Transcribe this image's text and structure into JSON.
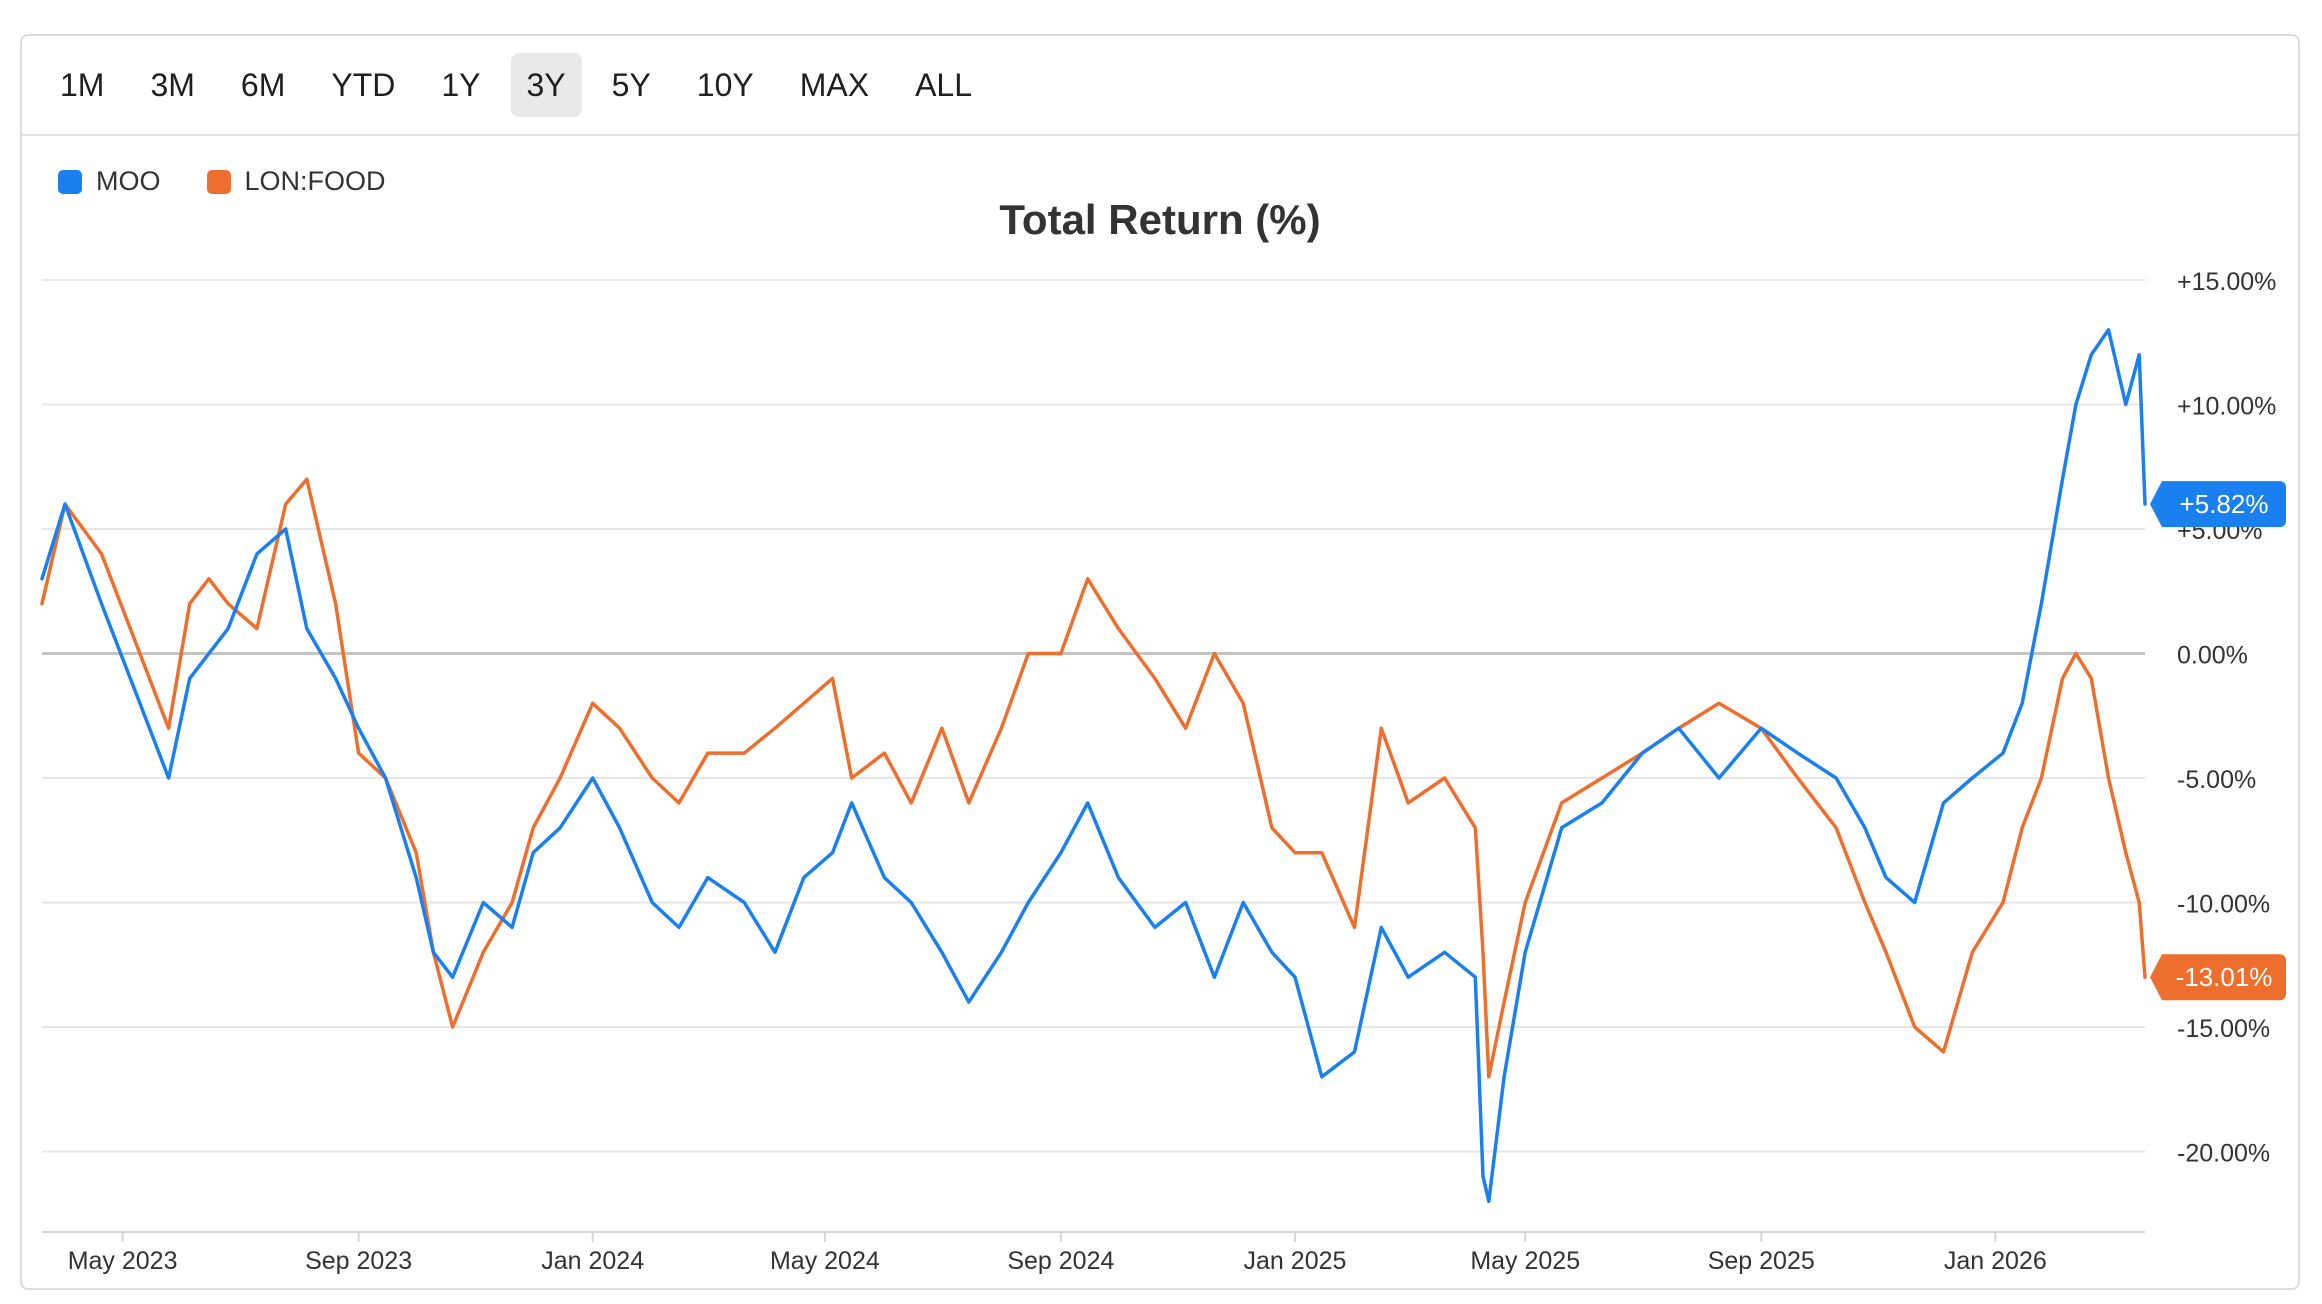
{
  "range_selector": {
    "buttons": [
      "1M",
      "3M",
      "6M",
      "YTD",
      "1Y",
      "3Y",
      "5Y",
      "10Y",
      "MAX",
      "ALL"
    ],
    "active": "3Y"
  },
  "chart_data": {
    "type": "line",
    "title": "Total Return (%)",
    "xlabel": "",
    "ylabel": "",
    "ylim": [
      -23,
      15
    ],
    "y_ticks": [
      15,
      10,
      5,
      0,
      -5,
      -10,
      -15,
      -20
    ],
    "y_tick_labels": [
      "+15.00%",
      "+10.00%",
      "+5.00%",
      "0.00%",
      "-5.00%",
      "-10.00%",
      "-15.00%",
      "-20.00%"
    ],
    "x_range": [
      "2023-03-20",
      "2026-03-20"
    ],
    "x_ticks": [
      "2023-05-01",
      "2023-09-01",
      "2024-01-01",
      "2024-05-01",
      "2024-09-01",
      "2025-01-01",
      "2025-05-01",
      "2025-09-01",
      "2026-01-01"
    ],
    "x_tick_labels": [
      "May 2023",
      "Sep 2023",
      "Jan 2024",
      "May 2024",
      "Sep 2024",
      "Jan 2025",
      "May 2025",
      "Sep 2025",
      "Jan 2026"
    ],
    "grid": true,
    "zero_line": true,
    "legend_position": "top-left",
    "series": [
      {
        "name": "MOO",
        "color": "#1a80f0",
        "last_label": "+5.82%",
        "x": [
          "2023-03-20",
          "2023-04-01",
          "2023-04-20",
          "2023-05-10",
          "2023-05-25",
          "2023-06-05",
          "2023-06-15",
          "2023-06-25",
          "2023-07-10",
          "2023-07-25",
          "2023-08-05",
          "2023-08-20",
          "2023-09-01",
          "2023-09-15",
          "2023-10-01",
          "2023-10-10",
          "2023-10-20",
          "2023-11-05",
          "2023-11-20",
          "2023-12-01",
          "2023-12-15",
          "2024-01-01",
          "2024-01-15",
          "2024-02-01",
          "2024-02-15",
          "2024-03-01",
          "2024-03-20",
          "2024-04-05",
          "2024-04-20",
          "2024-05-05",
          "2024-05-15",
          "2024-06-01",
          "2024-06-15",
          "2024-07-01",
          "2024-07-15",
          "2024-08-01",
          "2024-08-15",
          "2024-09-01",
          "2024-09-15",
          "2024-10-01",
          "2024-10-20",
          "2024-11-05",
          "2024-11-20",
          "2024-12-05",
          "2024-12-20",
          "2025-01-01",
          "2025-01-15",
          "2025-02-01",
          "2025-02-15",
          "2025-03-01",
          "2025-03-20",
          "2025-04-05",
          "2025-04-09",
          "2025-04-12",
          "2025-04-20",
          "2025-05-01",
          "2025-05-20",
          "2025-06-10",
          "2025-07-01",
          "2025-07-20",
          "2025-08-10",
          "2025-09-01",
          "2025-09-20",
          "2025-10-10",
          "2025-10-25",
          "2025-11-05",
          "2025-11-20",
          "2025-12-05",
          "2025-12-20",
          "2026-01-05",
          "2026-01-15",
          "2026-01-25",
          "2026-02-05",
          "2026-02-12",
          "2026-02-20",
          "2026-03-01",
          "2026-03-10",
          "2026-03-17",
          "2026-03-20"
        ],
        "y": [
          3,
          6,
          2,
          -2,
          -5,
          -1,
          0,
          1,
          4,
          5,
          1,
          -1,
          -3,
          -5,
          -9,
          -12,
          -13,
          -10,
          -11,
          -8,
          -7,
          -5,
          -7,
          -10,
          -11,
          -9,
          -10,
          -12,
          -9,
          -8,
          -6,
          -9,
          -10,
          -12,
          -14,
          -12,
          -10,
          -8,
          -6,
          -9,
          -11,
          -10,
          -13,
          -10,
          -12,
          -13,
          -17,
          -16,
          -11,
          -13,
          -12,
          -13,
          -21,
          -22,
          -17,
          -12,
          -7,
          -6,
          -4,
          -3,
          -5,
          -3,
          -4,
          -5,
          -7,
          -9,
          -10,
          -6,
          -5,
          -4,
          -2,
          2,
          7,
          10,
          12,
          13,
          10,
          12,
          6
        ]
      },
      {
        "name": "LON:FOOD",
        "color": "#ee6f2d",
        "last_label": "-13.01%",
        "x": [
          "2023-03-20",
          "2023-04-01",
          "2023-04-20",
          "2023-05-10",
          "2023-05-25",
          "2023-06-05",
          "2023-06-15",
          "2023-06-25",
          "2023-07-10",
          "2023-07-25",
          "2023-08-05",
          "2023-08-20",
          "2023-09-01",
          "2023-09-15",
          "2023-10-01",
          "2023-10-10",
          "2023-10-20",
          "2023-11-05",
          "2023-11-20",
          "2023-12-01",
          "2023-12-15",
          "2024-01-01",
          "2024-01-15",
          "2024-02-01",
          "2024-02-15",
          "2024-03-01",
          "2024-03-20",
          "2024-04-05",
          "2024-04-20",
          "2024-05-05",
          "2024-05-15",
          "2024-06-01",
          "2024-06-15",
          "2024-07-01",
          "2024-07-15",
          "2024-08-01",
          "2024-08-15",
          "2024-09-01",
          "2024-09-15",
          "2024-10-01",
          "2024-10-20",
          "2024-11-05",
          "2024-11-20",
          "2024-12-05",
          "2024-12-20",
          "2025-01-01",
          "2025-01-15",
          "2025-02-01",
          "2025-02-15",
          "2025-03-01",
          "2025-03-20",
          "2025-04-05",
          "2025-04-09",
          "2025-04-12",
          "2025-04-20",
          "2025-05-01",
          "2025-05-20",
          "2025-06-10",
          "2025-07-01",
          "2025-07-20",
          "2025-08-10",
          "2025-09-01",
          "2025-09-20",
          "2025-10-10",
          "2025-10-25",
          "2025-11-05",
          "2025-11-20",
          "2025-12-05",
          "2025-12-20",
          "2026-01-05",
          "2026-01-15",
          "2026-01-25",
          "2026-02-05",
          "2026-02-12",
          "2026-02-20",
          "2026-03-01",
          "2026-03-10",
          "2026-03-17",
          "2026-03-20"
        ],
        "y": [
          2,
          6,
          4,
          0,
          -3,
          2,
          3,
          2,
          1,
          6,
          7,
          2,
          -4,
          -5,
          -8,
          -12,
          -15,
          -12,
          -10,
          -7,
          -5,
          -2,
          -3,
          -5,
          -6,
          -4,
          -4,
          -3,
          -2,
          -1,
          -5,
          -4,
          -6,
          -3,
          -6,
          -3,
          0,
          0,
          3,
          1,
          -1,
          -3,
          0,
          -2,
          -7,
          -8,
          -8,
          -11,
          -3,
          -6,
          -5,
          -7,
          -12,
          -17,
          -14,
          -10,
          -6,
          -5,
          -4,
          -3,
          -2,
          -3,
          -5,
          -7,
          -10,
          -12,
          -15,
          -16,
          -12,
          -10,
          -7,
          -5,
          -1,
          0,
          -1,
          -5,
          -8,
          -10,
          -13
        ]
      }
    ]
  }
}
